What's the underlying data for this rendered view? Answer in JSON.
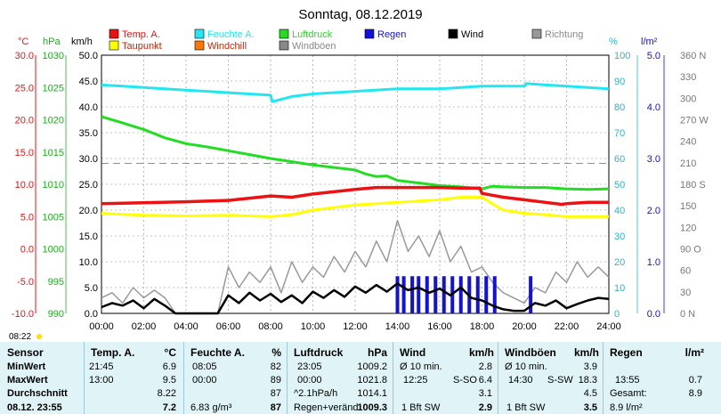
{
  "title": "Sonntag, 08.12.2019",
  "colors": {
    "temp": "#ee1111",
    "humidity": "#22e6f0",
    "pressure": "#22dd22",
    "rain": "#1111dd",
    "wind": "#000000",
    "direction": "#999999",
    "dewpoint": "#ffff00",
    "windchill": "#ff7700",
    "gust": "#888888",
    "table_bg": "#e0f4f8"
  },
  "legend": [
    {
      "label": "Temp. A.",
      "color": "#ee1111"
    },
    {
      "label": "Feuchte A.",
      "color": "#22e6f0"
    },
    {
      "label": "Luftdruck",
      "color": "#22dd22"
    },
    {
      "label": "Regen",
      "color": "#1111dd"
    },
    {
      "label": "Wind",
      "color": "#000000"
    },
    {
      "label": "Richtung",
      "color": "#999999"
    },
    {
      "label": "Taupunkt",
      "color": "#ffff00"
    },
    {
      "label": "Windchill",
      "color": "#ff7700"
    },
    {
      "label": "Windböen",
      "color": "#888888"
    }
  ],
  "axes": {
    "units": {
      "temp": "°C",
      "pressure": "hPa",
      "wind": "km/h",
      "humidity": "%",
      "rain": "l/m²"
    },
    "temp_ticks": [
      "30.0",
      "25.0",
      "20.0",
      "15.0",
      "10.0",
      "5.0",
      "0.0",
      "-5.0",
      "-10.0"
    ],
    "pressure_ticks": [
      "1030",
      "1025",
      "1020",
      "1015",
      "1010",
      "1005",
      "1000",
      "995",
      "990"
    ],
    "wind_ticks": [
      "50.0",
      "45.0",
      "40.0",
      "35.0",
      "30.0",
      "25.0",
      "20.0",
      "15.0",
      "10.0",
      "5.0",
      "0.0"
    ],
    "humidity_ticks": [
      "100",
      "90",
      "80",
      "70",
      "60",
      "50",
      "40",
      "30",
      "20",
      "10",
      "0"
    ],
    "rain_ticks": [
      "5.0",
      "4.0",
      "3.0",
      "2.0",
      "1.0",
      "0.0"
    ],
    "direction_ticks": [
      "360 N",
      "330",
      "300",
      "270 W",
      "240",
      "210",
      "180 S",
      "150",
      "120",
      "90 O",
      "60",
      "30",
      "0 N"
    ],
    "x_ticks": [
      "00:00",
      "02:00",
      "04:00",
      "06:00",
      "08:00",
      "10:00",
      "12:00",
      "14:00",
      "16:00",
      "18:00",
      "20:00",
      "22:00",
      "24:00"
    ],
    "sunrise": "08:22"
  },
  "chart_data": {
    "type": "line",
    "x_unit": "hours",
    "ylim_temp": [
      -10,
      30
    ],
    "ylim_pressure": [
      990,
      1030
    ],
    "ylim_wind": [
      0,
      50
    ],
    "ylim_humidity": [
      0,
      100
    ],
    "ylim_rain": [
      0,
      5
    ],
    "series": [
      {
        "name": "Temp. A.",
        "axis": "temp",
        "x": [
          0,
          4,
          6,
          8,
          9,
          10,
          12,
          13,
          14,
          16,
          17,
          17.9,
          18,
          19,
          20,
          21,
          21.75,
          22,
          23,
          24
        ],
        "values": [
          7.0,
          7.3,
          7.5,
          8.2,
          8.0,
          8.5,
          9.2,
          9.5,
          9.5,
          9.5,
          9.4,
          9.4,
          8.6,
          8.0,
          7.6,
          7.2,
          6.9,
          7.0,
          7.2,
          7.2
        ]
      },
      {
        "name": "Taupunkt",
        "axis": "temp",
        "x": [
          0,
          2,
          4,
          6,
          8,
          9,
          10,
          12,
          14,
          16,
          17,
          18,
          18.5,
          19,
          20,
          21,
          22,
          23,
          24
        ],
        "values": [
          5.5,
          5.2,
          5.1,
          5.2,
          5.0,
          5.3,
          6.0,
          6.8,
          7.2,
          7.6,
          8.0,
          8.0,
          7.0,
          6.0,
          5.5,
          5.3,
          5.0,
          5.0,
          5.0
        ]
      },
      {
        "name": "Feuchte A.",
        "axis": "humidity",
        "x": [
          0,
          1,
          2,
          3,
          4,
          5,
          6,
          7,
          8,
          8.08,
          9,
          10,
          12,
          14,
          15,
          16,
          17,
          18,
          19,
          20,
          20.1,
          21,
          22,
          23,
          24
        ],
        "values": [
          88.5,
          88,
          87.5,
          87,
          86.5,
          86,
          85.5,
          85,
          84.5,
          82,
          84,
          85,
          86,
          87,
          87,
          87,
          87.5,
          88,
          88,
          88,
          89,
          88.5,
          88,
          87.5,
          87
        ]
      },
      {
        "name": "Luftdruck",
        "axis": "pressure",
        "x": [
          0,
          1,
          2,
          3,
          4,
          5,
          6,
          7,
          8,
          9,
          10,
          11,
          12,
          12.5,
          13,
          13.5,
          14,
          15,
          16,
          17,
          18,
          18.5,
          19,
          20,
          21,
          22,
          23,
          23.08,
          24
        ],
        "values": [
          1020.5,
          1019.5,
          1018.5,
          1017.2,
          1016.3,
          1015.8,
          1015.2,
          1014.6,
          1014,
          1013.5,
          1013,
          1012.6,
          1012.2,
          1011.6,
          1011.2,
          1011.3,
          1010.6,
          1010.2,
          1009.8,
          1009.6,
          1009.3,
          1009.7,
          1009.6,
          1009.5,
          1009.5,
          1009.3,
          1009.2,
          1009.2,
          1009.3
        ]
      },
      {
        "name": "Wind",
        "axis": "wind",
        "x": [
          0,
          0.5,
          1,
          1.5,
          2,
          2.5,
          3,
          3.5,
          4,
          5,
          5.5,
          6,
          6.5,
          7,
          7.5,
          8,
          8.5,
          9,
          9.5,
          10,
          10.5,
          11,
          11.5,
          12,
          12.5,
          13,
          13.5,
          14,
          14.5,
          15,
          15.5,
          16,
          16.5,
          17,
          17.5,
          18,
          18.5,
          19,
          19.5,
          20,
          20.5,
          21,
          21.5,
          22,
          22.5,
          23,
          23.5,
          24
        ],
        "values": [
          1.2,
          2.0,
          1.5,
          2.5,
          1.0,
          2.8,
          1.5,
          0,
          0,
          0,
          0,
          3.5,
          2.0,
          4.0,
          2.5,
          3.8,
          2.2,
          3.5,
          2.0,
          4.2,
          3.0,
          4.5,
          3.2,
          5.2,
          4.0,
          5.5,
          4.2,
          5.8,
          4.5,
          5.0,
          4.0,
          4.8,
          3.5,
          5.0,
          3.0,
          2.5,
          1.5,
          0.8,
          0.5,
          0.5,
          2.0,
          1.5,
          2.5,
          1.0,
          1.8,
          2.5,
          3.0,
          2.8
        ]
      },
      {
        "name": "Windböen",
        "axis": "wind",
        "x": [
          0,
          0.5,
          1,
          1.5,
          2,
          2.5,
          3,
          3.5,
          5.5,
          6,
          6.5,
          7,
          7.5,
          8,
          8.5,
          9,
          9.5,
          10,
          10.5,
          11,
          11.5,
          12,
          12.5,
          13,
          13.5,
          14,
          14.5,
          15,
          15.5,
          16,
          16.5,
          17,
          17.5,
          18,
          18.5,
          19,
          19.5,
          20,
          20.5,
          21,
          21.5,
          22,
          22.5,
          23,
          23.5,
          24
        ],
        "values": [
          3,
          4,
          2,
          5,
          3,
          4.5,
          3,
          0,
          0,
          9,
          5,
          8,
          6,
          9,
          4,
          10,
          6,
          9,
          7,
          11,
          8,
          12,
          9,
          14,
          10,
          18,
          12,
          15,
          11,
          16,
          10,
          13,
          8,
          9,
          6,
          4,
          3,
          2,
          5,
          4,
          8,
          6,
          10,
          7,
          9,
          7
        ]
      },
      {
        "name": "Regen",
        "axis": "rain",
        "type": "bar",
        "x": [
          14,
          14.3,
          14.7,
          15,
          15.4,
          15.8,
          16.2,
          16.6,
          17,
          17.4,
          17.8,
          18.2,
          18.6,
          20.3
        ],
        "values": [
          0.72,
          0.72,
          0.72,
          0.72,
          0.72,
          0.72,
          0.72,
          0.72,
          0.72,
          0.72,
          0.72,
          0.72,
          0.72,
          0.72
        ]
      }
    ]
  },
  "table": {
    "sensor": {
      "header": "Sensor",
      "rows": [
        "MinWert",
        "MaxWert",
        "Durchschnitt",
        "08.12. 23:55"
      ]
    },
    "temp": {
      "header": "Temp. A.",
      "unit": "°C",
      "times": [
        "21:45",
        "13:00",
        "",
        ""
      ],
      "values": [
        "6.9",
        "9.5",
        "8.22",
        "7.2"
      ]
    },
    "humidity": {
      "header": "Feuchte A.",
      "unit": "%",
      "times": [
        "08:05",
        "00:00",
        "",
        "6.83 g/m³"
      ],
      "values": [
        "82",
        "89",
        "87",
        "87"
      ]
    },
    "pressure": {
      "header": "Luftdruck",
      "unit": "hPa",
      "times": [
        "23:05",
        "00:00",
        "^2.1hPa/h",
        "Regen+veränd"
      ],
      "values": [
        "1009.2",
        "1021.8",
        "1014.1",
        "1009.3"
      ]
    },
    "wind": {
      "header": "Wind",
      "unit": "km/h",
      "times": [
        "Ø 10 min.",
        "12:25",
        "",
        "1 Bft SW"
      ],
      "dirs": [
        "",
        "S-SO",
        "",
        ""
      ],
      "values": [
        "2.8",
        "6.4",
        "3.1",
        "2.9"
      ]
    },
    "gust": {
      "header": "Windböen",
      "unit": "km/h",
      "times": [
        "Ø 10 min.",
        "14:30",
        "",
        "1 Bft SW"
      ],
      "dirs": [
        "",
        "S-SW",
        "",
        ""
      ],
      "values": [
        "3.9",
        "18.3",
        "4.5",
        "3.5"
      ]
    },
    "rain": {
      "header": "Regen",
      "unit": "l/m²",
      "times": [
        "",
        "13:55",
        "Gesamt:",
        "8.9 l/m²"
      ],
      "values": [
        "",
        "0.7",
        "8.9",
        ""
      ]
    }
  }
}
